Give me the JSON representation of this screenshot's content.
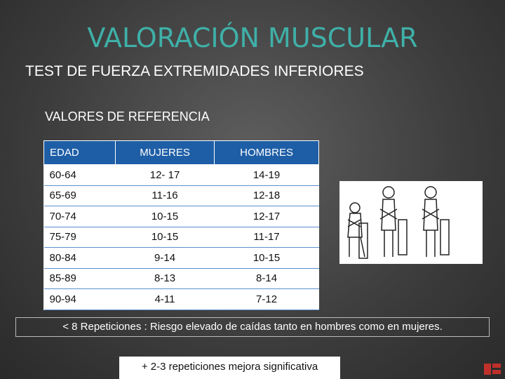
{
  "header": {
    "title": "VALORACIÓN MUSCULAR",
    "subtitle": "TEST DE FUERZA EXTREMIDADES INFERIORES"
  },
  "section": "VALORES DE REFERENCIA",
  "table": {
    "columns": [
      "EDAD",
      "MUJERES",
      "HOMBRES"
    ],
    "rows": [
      [
        "60-64",
        "12- 17",
        "14-19"
      ],
      [
        "65-69",
        "11-16",
        "12-18"
      ],
      [
        "70-74",
        "10-15",
        "12-17"
      ],
      [
        "75-79",
        "10-15",
        "11-17"
      ],
      [
        "80-84",
        "9-14",
        "10-15"
      ],
      [
        "85-89",
        "8-13",
        "8-14"
      ],
      [
        "90-94",
        "4-11",
        "7-12"
      ]
    ]
  },
  "note": "< 8 Repeticiones : Riesgo elevado de caídas tanto en hombres como en mujeres.",
  "footer": "+ 2-3 repeticiones mejora significativa"
}
